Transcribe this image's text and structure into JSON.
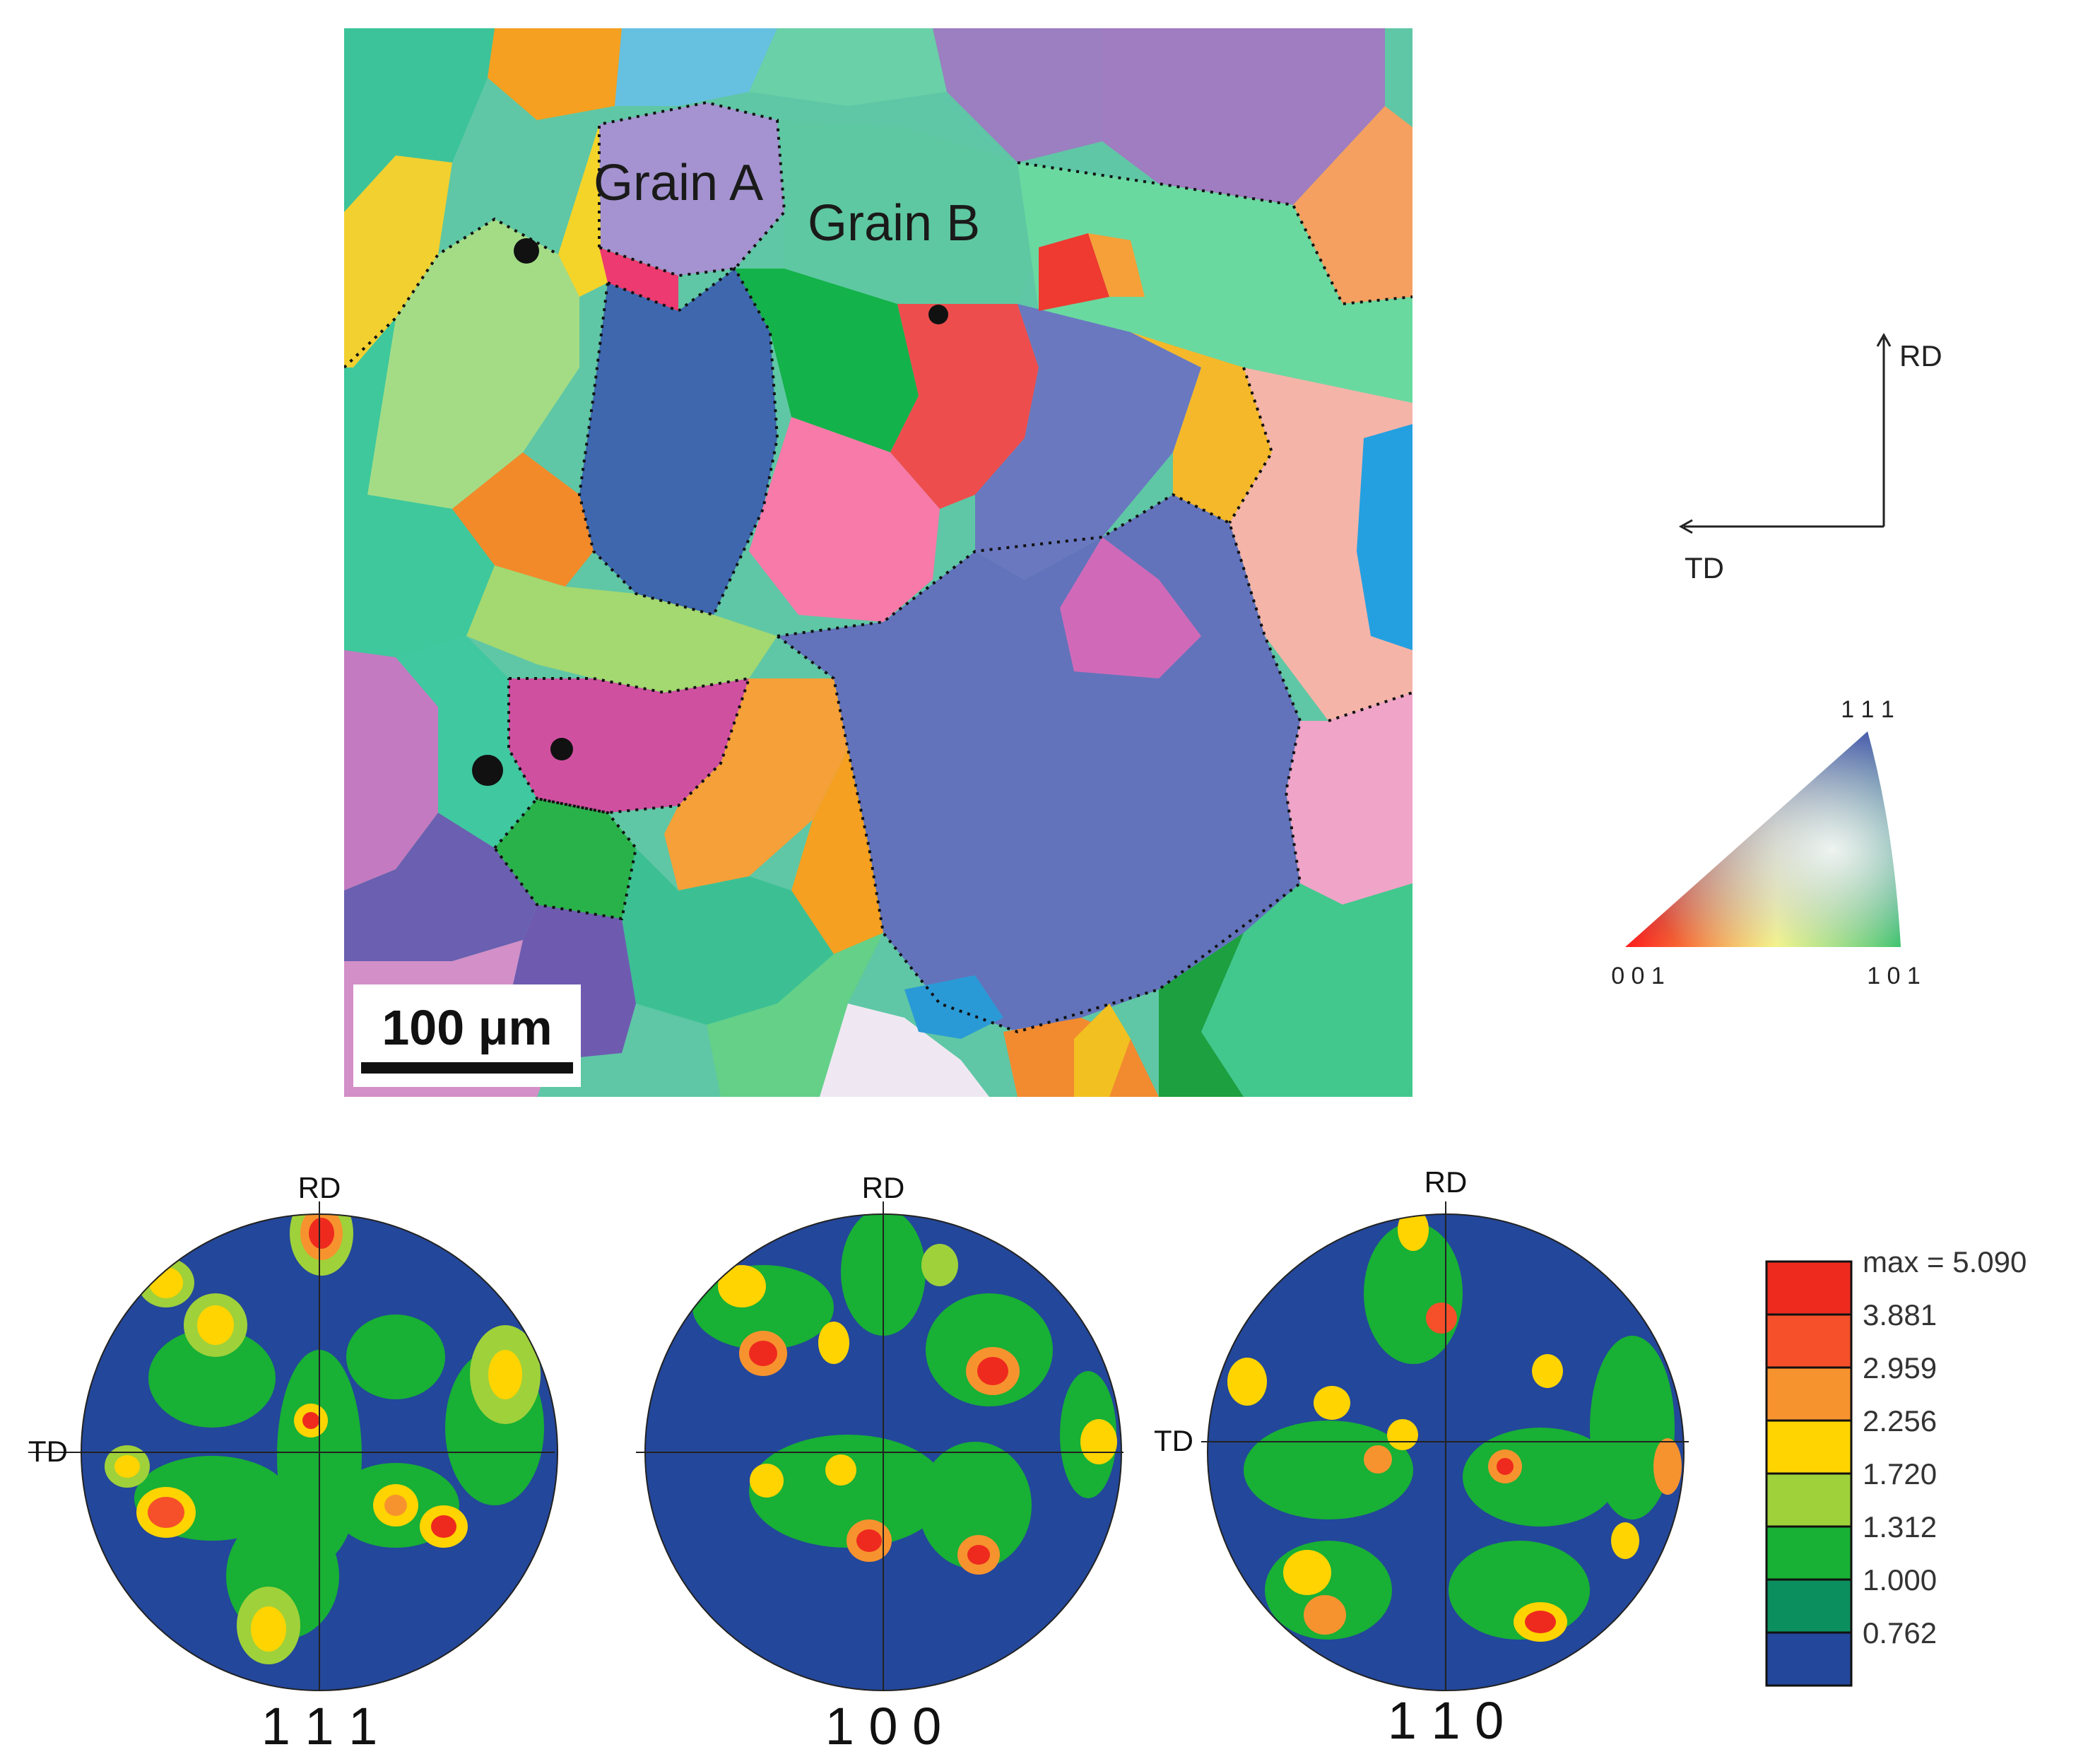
{
  "ebsd_map": {
    "grain_a_label": "Grain A",
    "grain_b_label": "Grain B",
    "scale_bar_label": "100 μm"
  },
  "axes_key": {
    "rd_label": "RD",
    "td_label": "TD"
  },
  "ipf_triangle": {
    "label_111": "1 1 1",
    "label_001": "0 0 1",
    "label_101": "1 0 1",
    "colors": {
      "red_001": "#ff2020",
      "green_101": "#10c040",
      "blue_111": "#2030a0"
    }
  },
  "pole_figures": [
    {
      "title": "1 1 1",
      "rd_label": "RD",
      "td_label": "TD"
    },
    {
      "title": "1 0 0",
      "rd_label": "RD",
      "td_label": ""
    },
    {
      "title": "1 1 0",
      "rd_label": "RD",
      "td_label": "TD"
    }
  ],
  "legend": {
    "entries": [
      {
        "label": "max = 5.090",
        "color": "#ee2a1e"
      },
      {
        "label": "3.881",
        "color": "#f5502a"
      },
      {
        "label": "2.959",
        "color": "#f7932e"
      },
      {
        "label": "2.256",
        "color": "#ffd400"
      },
      {
        "label": "1.720",
        "color": "#9fd13a"
      },
      {
        "label": "1.312",
        "color": "#18b035"
      },
      {
        "label": "1.000",
        "color": "#0c8f5f"
      },
      {
        "label": "0.762",
        "color": "#23479a"
      }
    ]
  }
}
